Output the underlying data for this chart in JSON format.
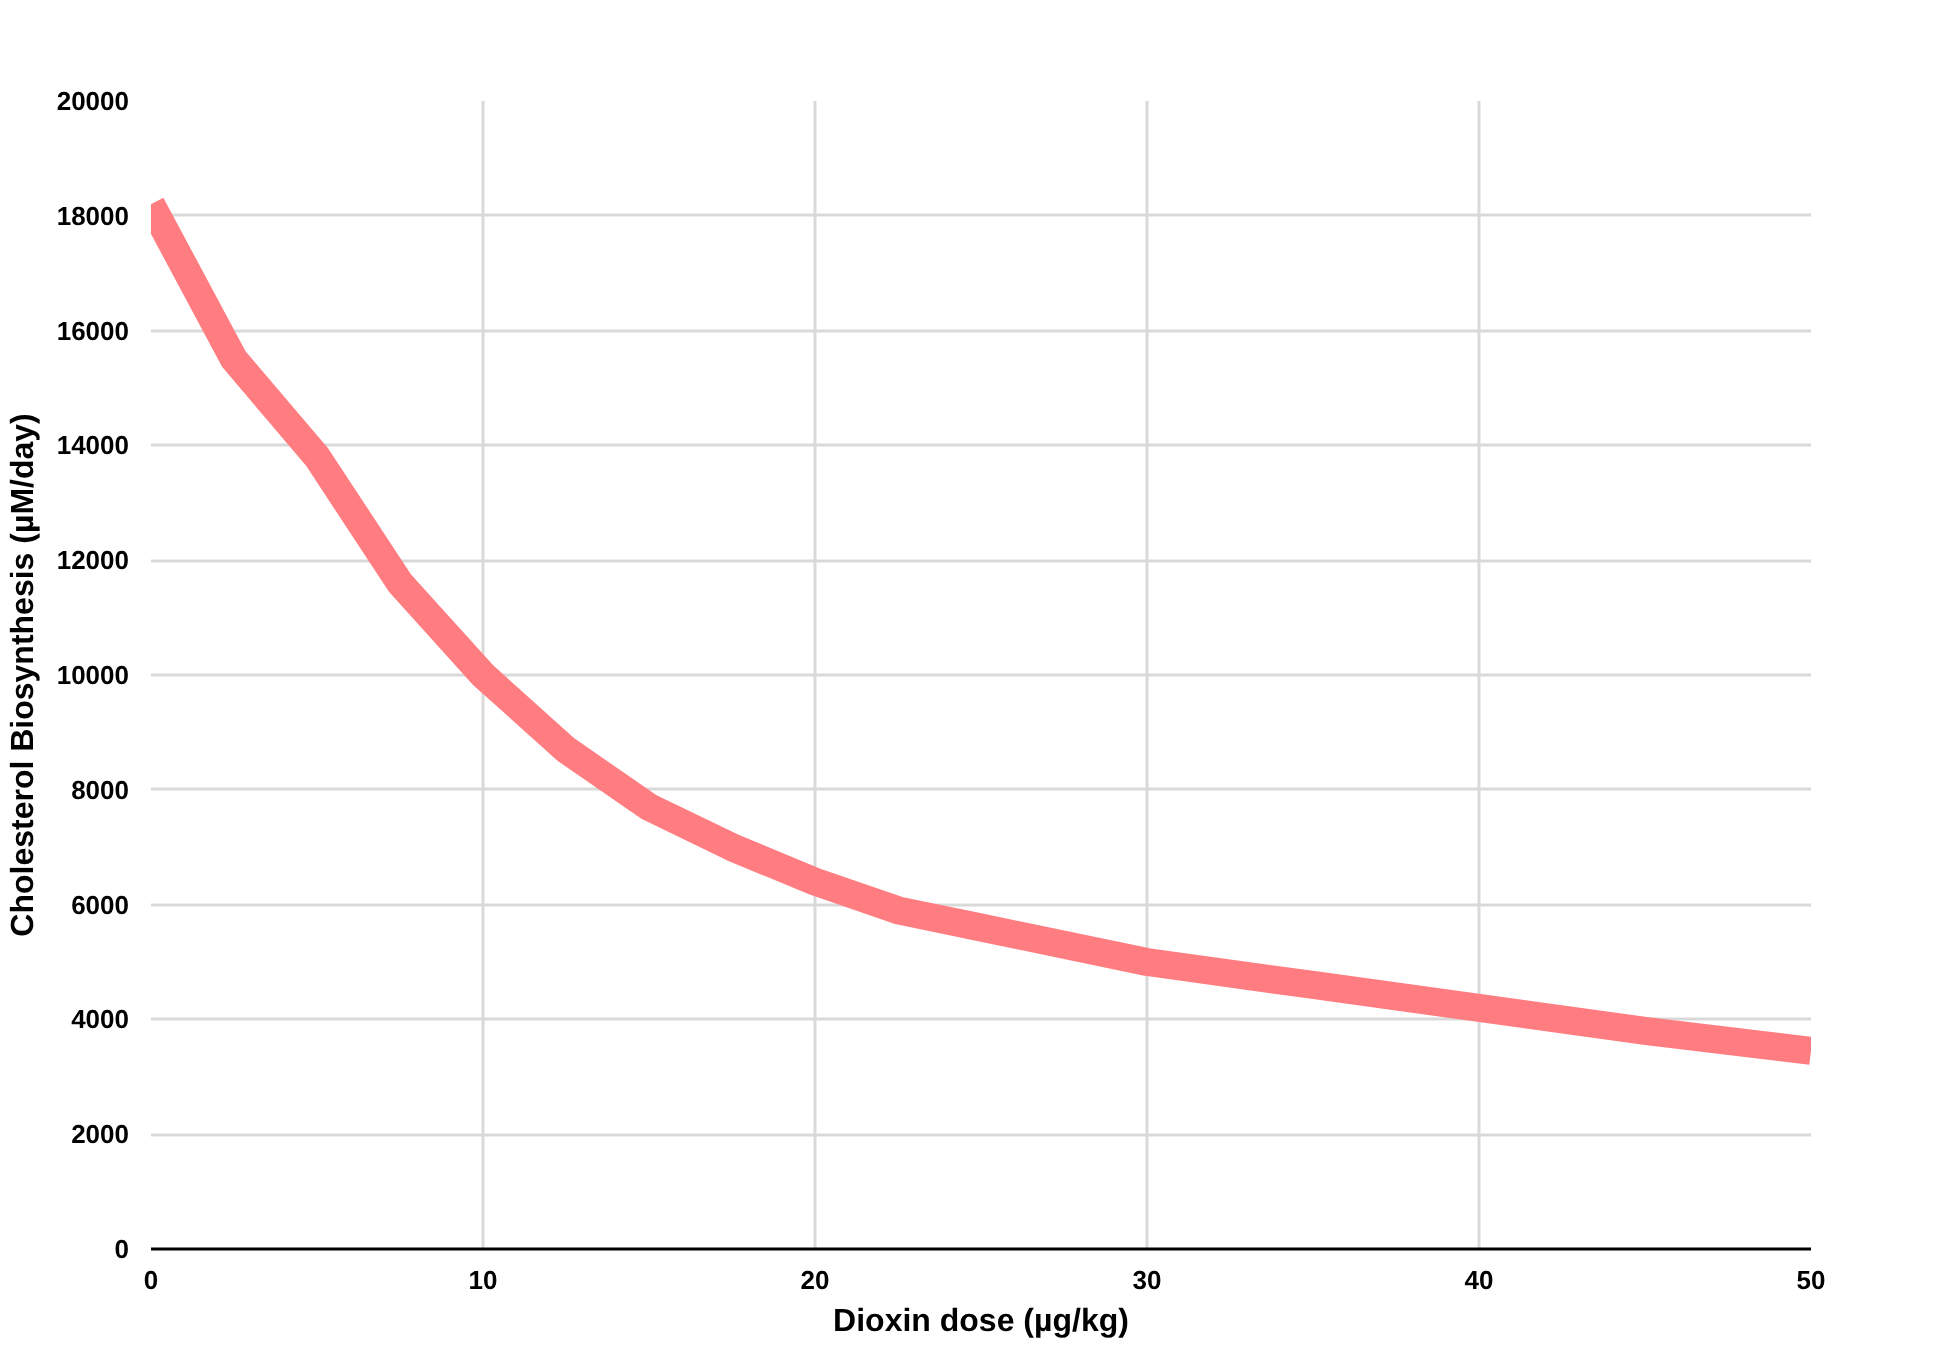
{
  "chart_data": {
    "type": "line",
    "xlabel": "Dioxin dose (µg/kg)",
    "ylabel": "Cholesterol Biosynthesis (µM/day)",
    "x": [
      0,
      2.5,
      5,
      7.5,
      10,
      12.5,
      15,
      17.5,
      20,
      22.5,
      25,
      30,
      35,
      40,
      45,
      50
    ],
    "series": [
      {
        "color": "#ff7c80",
        "values": [
          18200,
          15500,
          13800,
          11600,
          10000,
          8700,
          7700,
          7000,
          6400,
          5900,
          5600,
          5000,
          4600,
          4200,
          3800,
          3450
        ]
      }
    ],
    "xlim": [
      0,
      50
    ],
    "xticks": [
      0,
      10,
      20,
      30,
      40,
      50
    ],
    "ylim": [
      0,
      20000
    ],
    "yticks": [
      0,
      2000,
      4000,
      6000,
      8000,
      10000,
      12000,
      14000,
      16000,
      18000,
      20000
    ],
    "grid": true,
    "marker": "none",
    "line_style": "solid"
  }
}
